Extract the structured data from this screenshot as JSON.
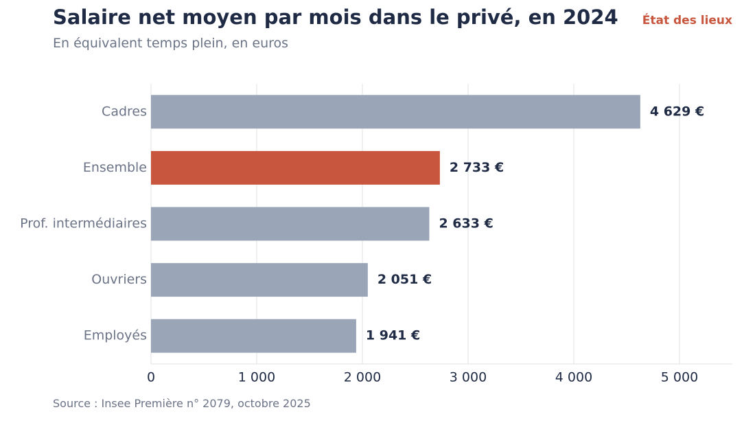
{
  "header": {
    "title": "Salaire net moyen par mois dans le privé, en 2024",
    "tag": "État des lieux",
    "subtitle": "En équivalent temps plein, en euros"
  },
  "footer": {
    "source": "Source : Insee Première n° 2079, octobre 2025"
  },
  "colors": {
    "bar_default": "#9aa5b7",
    "bar_highlight": "#c8553d",
    "text_dark": "#1f2a44",
    "text_muted": "#6b7386",
    "grid": "#e4e6ea"
  },
  "chart_data": {
    "type": "bar",
    "orientation": "horizontal",
    "title": "Salaire net moyen par mois dans le privé, en 2024",
    "subtitle": "En équivalent temps plein, en euros",
    "categories": [
      "Cadres",
      "Ensemble",
      "Prof. intermédiaires",
      "Ouvriers",
      "Employés"
    ],
    "values": [
      4629,
      2733,
      2633,
      2051,
      1941
    ],
    "value_labels": [
      "4 629 €",
      "2 733 €",
      "2 633 €",
      "2 051 €",
      "1 941 €"
    ],
    "highlight": "Ensemble",
    "xlim": [
      0,
      5500
    ],
    "xticks": [
      0,
      1000,
      2000,
      3000,
      4000,
      5000
    ],
    "xtick_labels": [
      "0",
      "1 000",
      "2 000",
      "3 000",
      "4 000",
      "5 000"
    ],
    "grid": "vertical",
    "legend": "none"
  }
}
